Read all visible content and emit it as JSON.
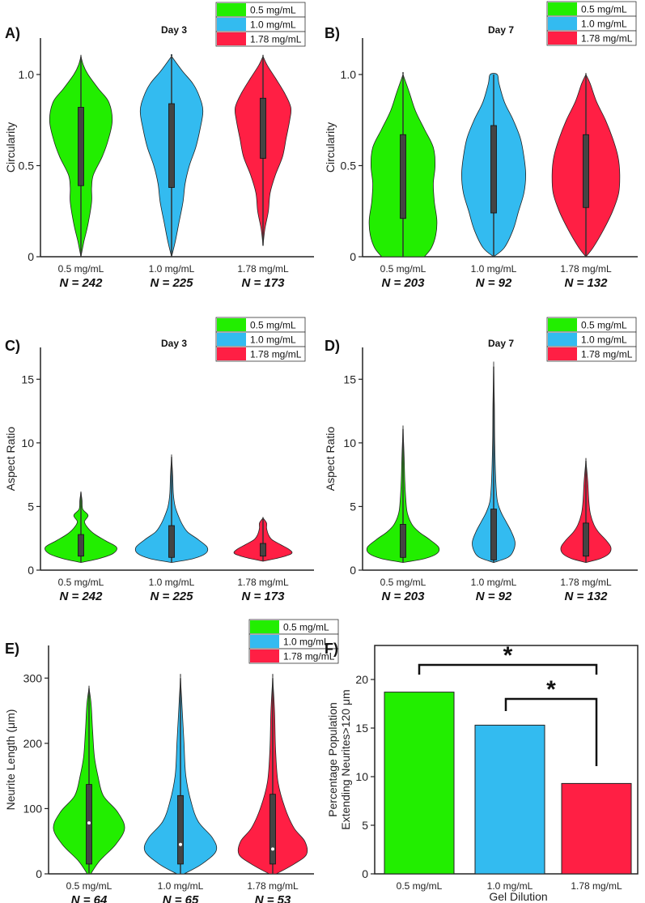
{
  "colors": {
    "c05": "#22ee00",
    "c10": "#33bbf0",
    "c178": "#ff1f44",
    "box": "#444444",
    "axis": "#222222"
  },
  "chart_data": [
    {
      "id": "A",
      "panel_label": "A)",
      "type": "violin",
      "title": "Day 3",
      "ylabel": "Circularity",
      "ylim": [
        0,
        1.2
      ],
      "yticks": [
        0,
        0.5,
        1.0
      ],
      "ytick_labels": [
        "0",
        "0.5",
        "1.0"
      ],
      "legend": [
        "0.5 mg/mL",
        "1.0 mg/mL",
        "1.78 mg/mL"
      ],
      "legend_position": "top-right",
      "categories": [
        "0.5 mg/mL",
        "1.0 mg/mL",
        "1.78 mg/mL"
      ],
      "n_labels": [
        "N = 242",
        "N = 225",
        "N = 173"
      ],
      "series": [
        {
          "name": "0.5 mg/mL",
          "min": 0.0,
          "max": 1.1,
          "q1": 0.39,
          "q3": 0.82,
          "median": null,
          "profile": [
            [
              0.0,
              0.0
            ],
            [
              0.08,
              0.08
            ],
            [
              0.18,
              0.2
            ],
            [
              0.3,
              0.3
            ],
            [
              0.38,
              0.3
            ],
            [
              0.45,
              0.35
            ],
            [
              0.55,
              0.6
            ],
            [
              0.65,
              0.78
            ],
            [
              0.75,
              0.88
            ],
            [
              0.85,
              0.78
            ],
            [
              0.92,
              0.5
            ],
            [
              1.0,
              0.2
            ],
            [
              1.05,
              0.07
            ],
            [
              1.1,
              0.0
            ]
          ]
        },
        {
          "name": "1.0 mg/mL",
          "min": 0.0,
          "max": 1.1,
          "q1": 0.38,
          "q3": 0.84,
          "median": null,
          "profile": [
            [
              0.0,
              0.0
            ],
            [
              0.08,
              0.1
            ],
            [
              0.18,
              0.2
            ],
            [
              0.3,
              0.32
            ],
            [
              0.4,
              0.38
            ],
            [
              0.5,
              0.5
            ],
            [
              0.6,
              0.68
            ],
            [
              0.7,
              0.8
            ],
            [
              0.8,
              0.88
            ],
            [
              0.88,
              0.78
            ],
            [
              0.95,
              0.6
            ],
            [
              1.02,
              0.3
            ],
            [
              1.1,
              0.0
            ]
          ]
        },
        {
          "name": "1.78 mg/mL",
          "min": 0.06,
          "max": 1.1,
          "q1": 0.54,
          "q3": 0.87,
          "median": null,
          "profile": [
            [
              0.06,
              0.0
            ],
            [
              0.15,
              0.05
            ],
            [
              0.25,
              0.15
            ],
            [
              0.35,
              0.2
            ],
            [
              0.45,
              0.35
            ],
            [
              0.55,
              0.55
            ],
            [
              0.65,
              0.65
            ],
            [
              0.75,
              0.75
            ],
            [
              0.82,
              0.78
            ],
            [
              0.9,
              0.6
            ],
            [
              0.98,
              0.35
            ],
            [
              1.05,
              0.12
            ],
            [
              1.1,
              0.0
            ]
          ]
        }
      ]
    },
    {
      "id": "B",
      "panel_label": "B)",
      "type": "violin",
      "title": "Day 7",
      "ylabel": "Circularity",
      "ylim": [
        0,
        1.2
      ],
      "yticks": [
        0,
        0.5,
        1.0
      ],
      "ytick_labels": [
        "0",
        "0.5",
        "1.0"
      ],
      "legend": [
        "0.5 mg/mL",
        "1.0 mg/mL",
        "1.78 mg/mL"
      ],
      "legend_position": "top-right",
      "categories": [
        "0.5 mg/mL",
        "1.0 mg/mL",
        "1.78 mg/mL"
      ],
      "n_labels": [
        "N = 203",
        "N = 92",
        "N = 132"
      ],
      "series": [
        {
          "name": "0.5 mg/mL",
          "min": 0.0,
          "max": 1.0,
          "q1": 0.21,
          "q3": 0.67,
          "median": null,
          "profile": [
            [
              0.0,
              0.6
            ],
            [
              0.05,
              0.8
            ],
            [
              0.12,
              0.92
            ],
            [
              0.2,
              0.95
            ],
            [
              0.3,
              0.88
            ],
            [
              0.4,
              0.85
            ],
            [
              0.5,
              0.9
            ],
            [
              0.6,
              0.85
            ],
            [
              0.7,
              0.6
            ],
            [
              0.8,
              0.35
            ],
            [
              0.9,
              0.18
            ],
            [
              1.0,
              0.0
            ]
          ]
        },
        {
          "name": "1.0 mg/mL",
          "min": 0.0,
          "max": 1.0,
          "q1": 0.24,
          "q3": 0.72,
          "median": null,
          "profile": [
            [
              0.0,
              0.0
            ],
            [
              0.05,
              0.3
            ],
            [
              0.15,
              0.55
            ],
            [
              0.25,
              0.7
            ],
            [
              0.35,
              0.85
            ],
            [
              0.45,
              0.9
            ],
            [
              0.55,
              0.85
            ],
            [
              0.65,
              0.75
            ],
            [
              0.75,
              0.55
            ],
            [
              0.85,
              0.3
            ],
            [
              0.95,
              0.15
            ],
            [
              1.0,
              0.1
            ]
          ]
        },
        {
          "name": "1.78 mg/mL",
          "min": 0.0,
          "max": 1.0,
          "q1": 0.27,
          "q3": 0.67,
          "median": null,
          "profile": [
            [
              0.0,
              0.0
            ],
            [
              0.05,
              0.2
            ],
            [
              0.15,
              0.5
            ],
            [
              0.25,
              0.75
            ],
            [
              0.35,
              0.92
            ],
            [
              0.45,
              0.95
            ],
            [
              0.55,
              0.9
            ],
            [
              0.65,
              0.75
            ],
            [
              0.75,
              0.55
            ],
            [
              0.85,
              0.3
            ],
            [
              0.95,
              0.12
            ],
            [
              1.0,
              0.0
            ]
          ]
        }
      ]
    },
    {
      "id": "C",
      "panel_label": "C)",
      "type": "violin",
      "title": "Day 3",
      "ylabel": "Aspect Ratio",
      "ylim": [
        0,
        17.5
      ],
      "yticks": [
        0,
        5,
        10,
        15
      ],
      "ytick_labels": [
        "0",
        "5",
        "10",
        "15"
      ],
      "legend": [
        "0.5 mg/mL",
        "1.0 mg/mL",
        "1.78 mg/mL"
      ],
      "legend_position": "top-right",
      "categories": [
        "0.5 mg/mL",
        "1.0 mg/mL",
        "1.78 mg/mL"
      ],
      "n_labels": [
        "N = 242",
        "N = 225",
        "N = 173"
      ],
      "series": [
        {
          "name": "0.5 mg/mL",
          "min": 0.6,
          "max": 6.1,
          "q1": 1.1,
          "q3": 2.8,
          "median": null,
          "profile": [
            [
              0.6,
              0.0
            ],
            [
              0.9,
              0.5
            ],
            [
              1.3,
              0.9
            ],
            [
              1.8,
              1.0
            ],
            [
              2.3,
              0.7
            ],
            [
              2.8,
              0.4
            ],
            [
              3.3,
              0.2
            ],
            [
              3.8,
              0.1
            ],
            [
              4.3,
              0.2
            ],
            [
              4.8,
              0.05
            ],
            [
              5.5,
              0.03
            ],
            [
              6.1,
              0.0
            ]
          ]
        },
        {
          "name": "1.0 mg/mL",
          "min": 0.6,
          "max": 8.9,
          "q1": 1.0,
          "q3": 3.5,
          "median": null,
          "profile": [
            [
              0.6,
              0.0
            ],
            [
              0.9,
              0.6
            ],
            [
              1.3,
              0.95
            ],
            [
              1.8,
              1.0
            ],
            [
              2.4,
              0.75
            ],
            [
              3.0,
              0.45
            ],
            [
              3.6,
              0.3
            ],
            [
              4.2,
              0.2
            ],
            [
              5.0,
              0.1
            ],
            [
              6.0,
              0.05
            ],
            [
              7.5,
              0.03
            ],
            [
              8.9,
              0.0
            ]
          ]
        },
        {
          "name": "1.78 mg/mL",
          "min": 0.7,
          "max": 4.1,
          "q1": 1.1,
          "q3": 2.1,
          "median": null,
          "profile": [
            [
              0.7,
              0.0
            ],
            [
              1.0,
              0.5
            ],
            [
              1.3,
              0.8
            ],
            [
              1.6,
              0.75
            ],
            [
              2.0,
              0.5
            ],
            [
              2.4,
              0.25
            ],
            [
              2.8,
              0.15
            ],
            [
              3.3,
              0.1
            ],
            [
              3.7,
              0.1
            ],
            [
              4.1,
              0.0
            ]
          ]
        }
      ]
    },
    {
      "id": "D",
      "panel_label": "D)",
      "type": "violin",
      "title": "Day 7",
      "ylabel": "Aspect Ratio",
      "ylim": [
        0,
        17.5
      ],
      "yticks": [
        0,
        5,
        10,
        15
      ],
      "ytick_labels": [
        "0",
        "5",
        "10",
        "15"
      ],
      "legend": [
        "0.5 mg/mL",
        "1.0 mg/mL",
        "1.78 mg/mL"
      ],
      "legend_position": "top-right",
      "categories": [
        "0.5 mg/mL",
        "1.0 mg/mL",
        "1.78 mg/mL"
      ],
      "n_labels": [
        "N = 203",
        "N = 92",
        "N = 132"
      ],
      "series": [
        {
          "name": "0.5 mg/mL",
          "min": 0.6,
          "max": 11.1,
          "q1": 1.0,
          "q3": 3.6,
          "median": null,
          "profile": [
            [
              0.6,
              0.0
            ],
            [
              0.9,
              0.6
            ],
            [
              1.3,
              0.95
            ],
            [
              1.8,
              1.0
            ],
            [
              2.4,
              0.75
            ],
            [
              3.0,
              0.45
            ],
            [
              3.6,
              0.25
            ],
            [
              4.5,
              0.12
            ],
            [
              5.5,
              0.08
            ],
            [
              7.0,
              0.05
            ],
            [
              9.0,
              0.03
            ],
            [
              11.1,
              0.0
            ]
          ]
        },
        {
          "name": "1.0 mg/mL",
          "min": 0.6,
          "max": 16.0,
          "q1": 0.8,
          "q3": 4.8,
          "median": null,
          "profile": [
            [
              0.6,
              0.0
            ],
            [
              1.0,
              0.4
            ],
            [
              1.5,
              0.55
            ],
            [
              2.2,
              0.6
            ],
            [
              3.0,
              0.5
            ],
            [
              3.8,
              0.35
            ],
            [
              4.6,
              0.2
            ],
            [
              5.5,
              0.1
            ],
            [
              7.0,
              0.06
            ],
            [
              10.0,
              0.03
            ],
            [
              13.0,
              0.02
            ],
            [
              16.0,
              0.0
            ]
          ]
        },
        {
          "name": "1.78 mg/mL",
          "min": 0.6,
          "max": 8.6,
          "q1": 1.1,
          "q3": 3.7,
          "median": null,
          "profile": [
            [
              0.6,
              0.0
            ],
            [
              0.9,
              0.4
            ],
            [
              1.3,
              0.65
            ],
            [
              1.8,
              0.7
            ],
            [
              2.4,
              0.55
            ],
            [
              3.0,
              0.35
            ],
            [
              3.6,
              0.22
            ],
            [
              4.5,
              0.12
            ],
            [
              5.5,
              0.08
            ],
            [
              7.0,
              0.05
            ],
            [
              8.6,
              0.0
            ]
          ]
        }
      ]
    },
    {
      "id": "E",
      "panel_label": "E)",
      "type": "violin",
      "title": "",
      "ylabel": "Neurite Length (μm)",
      "ylim": [
        0,
        350
      ],
      "yticks": [
        0,
        100,
        200,
        300
      ],
      "ytick_labels": [
        "0",
        "100",
        "200",
        "300"
      ],
      "legend": [
        "0.5 mg/mL",
        "1.0 mg/mL",
        "1.78 mg/mL"
      ],
      "legend_position": "top-right",
      "categories": [
        "0.5 mg/mL",
        "1.0 mg/mL",
        "1.78 mg/mL"
      ],
      "n_labels": [
        "N = 64",
        "N = 65",
        "N = 53"
      ],
      "series": [
        {
          "name": "0.5 mg/mL",
          "min": 0,
          "max": 285,
          "q1": 15,
          "q3": 137,
          "median": 78,
          "profile": [
            [
              0,
              0.05
            ],
            [
              20,
              0.3
            ],
            [
              45,
              0.75
            ],
            [
              70,
              1.0
            ],
            [
              95,
              0.8
            ],
            [
              120,
              0.4
            ],
            [
              150,
              0.25
            ],
            [
              180,
              0.15
            ],
            [
              220,
              0.1
            ],
            [
              260,
              0.06
            ],
            [
              285,
              0.0
            ]
          ]
        },
        {
          "name": "1.0 mg/mL",
          "min": 0,
          "max": 300,
          "q1": 15,
          "q3": 120,
          "median": 45,
          "profile": [
            [
              0,
              0.1
            ],
            [
              15,
              0.6
            ],
            [
              35,
              1.0
            ],
            [
              55,
              0.9
            ],
            [
              80,
              0.5
            ],
            [
              110,
              0.3
            ],
            [
              150,
              0.15
            ],
            [
              200,
              0.1
            ],
            [
              250,
              0.05
            ],
            [
              300,
              0.0
            ]
          ]
        },
        {
          "name": "1.78 mg/mL",
          "min": 0,
          "max": 300,
          "q1": 15,
          "q3": 122,
          "median": 38,
          "profile": [
            [
              0,
              0.1
            ],
            [
              15,
              0.6
            ],
            [
              30,
              0.95
            ],
            [
              50,
              0.9
            ],
            [
              70,
              0.6
            ],
            [
              100,
              0.35
            ],
            [
              140,
              0.15
            ],
            [
              190,
              0.08
            ],
            [
              250,
              0.05
            ],
            [
              300,
              0.0
            ]
          ]
        }
      ]
    },
    {
      "id": "F",
      "panel_label": "F)",
      "type": "bar",
      "title": "",
      "ylabel_lines": [
        "Percentage Population",
        "Extending Neurites>120 μm"
      ],
      "xlabel": "Gel Dilution",
      "ylim": [
        0,
        23.5
      ],
      "yticks": [
        0,
        5,
        10,
        15,
        20
      ],
      "ytick_labels": [
        "0",
        "5",
        "10",
        "15",
        "20"
      ],
      "categories": [
        "0.5 mg/mL",
        "1.0 mg/mL",
        "1.78 mg/mL"
      ],
      "values": [
        18.7,
        15.3,
        9.3
      ],
      "significance": [
        {
          "from": 0,
          "to": 2,
          "label": "*"
        },
        {
          "from": 1,
          "to": 2,
          "label": "*"
        }
      ]
    }
  ]
}
